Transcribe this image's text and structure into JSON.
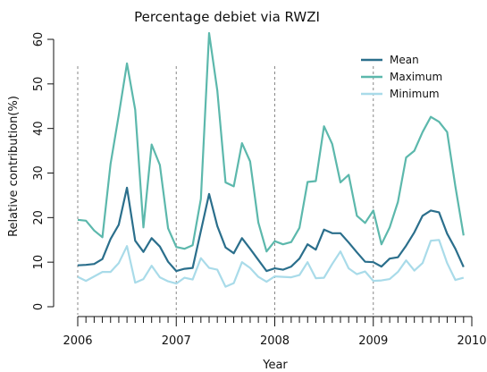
{
  "chart_data": {
    "type": "line",
    "title": "Percentage debiet via RWZI",
    "xlabel": "Year",
    "ylabel": "Relative contribution(%)",
    "xlim": [
      2006,
      2010
    ],
    "ylim": [
      0,
      60
    ],
    "x_ticks": [
      "2006",
      "2007",
      "2008",
      "2009",
      "2010"
    ],
    "y_ticks": [
      "0",
      "10",
      "20",
      "30",
      "40",
      "50",
      "60"
    ],
    "grid": "vertical dashed lines at each year",
    "legend_position": "top-right",
    "x": [
      "2006-01",
      "2006-02",
      "2006-03",
      "2006-04",
      "2006-05",
      "2006-06",
      "2006-07",
      "2006-08",
      "2006-09",
      "2006-10",
      "2006-11",
      "2006-12",
      "2007-01",
      "2007-02",
      "2007-03",
      "2007-04",
      "2007-05",
      "2007-06",
      "2007-07",
      "2007-08",
      "2007-09",
      "2007-10",
      "2007-11",
      "2007-12",
      "2008-01",
      "2008-02",
      "2008-03",
      "2008-04",
      "2008-05",
      "2008-06",
      "2008-07",
      "2008-08",
      "2008-09",
      "2008-10",
      "2008-11",
      "2008-12",
      "2009-01",
      "2009-02",
      "2009-03",
      "2009-04",
      "2009-05",
      "2009-06",
      "2009-07",
      "2009-08",
      "2009-09",
      "2009-10",
      "2009-11",
      "2009-12"
    ],
    "series": [
      {
        "name": "Mean",
        "color": "#2b6f8c",
        "values": [
          9.3,
          9.4,
          9.6,
          10.7,
          15.2,
          18.4,
          26.7,
          14.8,
          12.3,
          15.4,
          13.5,
          10.1,
          8.0,
          8.5,
          8.7,
          17.0,
          25.3,
          18.1,
          13.3,
          12.0,
          15.4,
          13.0,
          10.5,
          8.0,
          8.6,
          8.3,
          9.0,
          10.8,
          14.0,
          12.8,
          17.3,
          16.5,
          16.5,
          14.4,
          12.2,
          10.1,
          10.0,
          9.0,
          10.8,
          11.1,
          13.7,
          16.7,
          20.4,
          21.6,
          21.2,
          16.4,
          13.0,
          8.9
        ]
      },
      {
        "name": "Maximum",
        "color": "#5cb8ac",
        "values": [
          19.5,
          19.3,
          17.1,
          15.6,
          32.0,
          43.0,
          54.6,
          44.2,
          17.8,
          36.4,
          31.8,
          17.6,
          13.4,
          13.0,
          13.8,
          24.2,
          61.4,
          48.5,
          27.9,
          27.0,
          36.7,
          32.6,
          18.9,
          12.4,
          14.7,
          14.0,
          14.5,
          17.7,
          28.0,
          28.2,
          40.5,
          36.5,
          27.9,
          29.6,
          20.4,
          18.8,
          21.6,
          14.0,
          17.8,
          23.5,
          33.5,
          35.0,
          39.2,
          42.6,
          41.5,
          39.2,
          27.0,
          16.0
        ]
      },
      {
        "name": "Minimum",
        "color": "#a9dbe9",
        "values": [
          6.7,
          5.8,
          6.8,
          7.8,
          7.8,
          9.8,
          13.6,
          5.4,
          6.2,
          9.2,
          6.6,
          5.7,
          5.2,
          6.5,
          6.1,
          10.9,
          8.7,
          8.3,
          4.5,
          5.3,
          10.0,
          8.7,
          6.7,
          5.6,
          6.8,
          6.7,
          6.6,
          7.1,
          10.0,
          6.4,
          6.5,
          9.6,
          12.4,
          8.6,
          7.3,
          7.9,
          5.8,
          5.9,
          6.2,
          7.8,
          10.4,
          8.1,
          9.8,
          14.8,
          15.0,
          9.8,
          6.0,
          6.5
        ]
      }
    ]
  }
}
